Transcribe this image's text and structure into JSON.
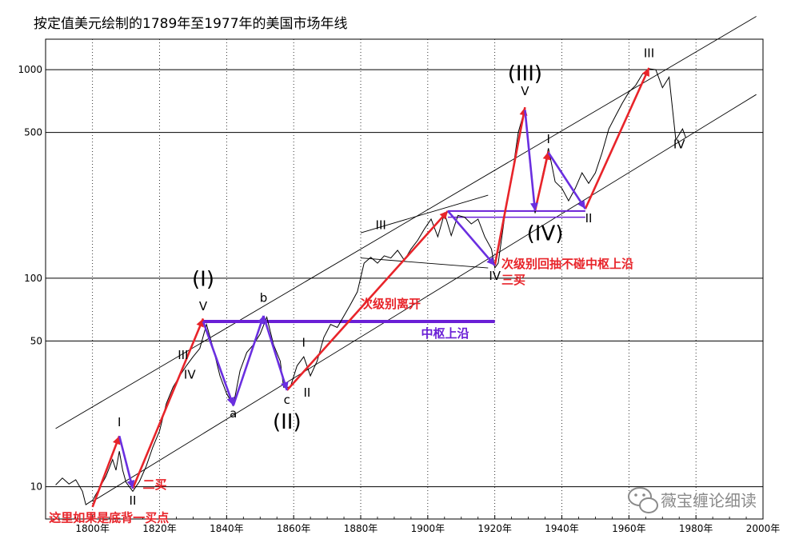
{
  "chart_data": {
    "type": "line",
    "title": "按定值美元绘制的1789年至1977年的美国市场年线",
    "y_scale": "log",
    "x_range": [
      1786,
      2000
    ],
    "y_range": [
      7,
      1400
    ],
    "x_ticks": [
      {
        "value": 1800,
        "label": "1800年"
      },
      {
        "value": 1820,
        "label": "1820年"
      },
      {
        "value": 1840,
        "label": "1840年"
      },
      {
        "value": 1860,
        "label": "1860年"
      },
      {
        "value": 1880,
        "label": "1880年"
      },
      {
        "value": 1900,
        "label": "1900年"
      },
      {
        "value": 1920,
        "label": "1920年"
      },
      {
        "value": 1940,
        "label": "1940年"
      },
      {
        "value": 1960,
        "label": "1960年"
      },
      {
        "value": 1980,
        "label": "1980年"
      },
      {
        "value": 2000,
        "label": "2000年"
      }
    ],
    "y_ticks": [
      {
        "value": 10,
        "label": "10"
      },
      {
        "value": 50,
        "label": "50"
      },
      {
        "value": 100,
        "label": "100"
      },
      {
        "value": 500,
        "label": "500"
      },
      {
        "value": 1000,
        "label": "1000"
      }
    ],
    "series": [
      {
        "color": "#000000",
        "points": [
          [
            1789,
            10.2
          ],
          [
            1791,
            11
          ],
          [
            1793,
            10.3
          ],
          [
            1795,
            10.8
          ],
          [
            1797,
            9.5
          ],
          [
            1798,
            8.2
          ],
          [
            1800,
            8.6
          ],
          [
            1802,
            9.8
          ],
          [
            1804,
            11.2
          ],
          [
            1806,
            13.5
          ],
          [
            1807,
            12.0
          ],
          [
            1808,
            14.8
          ],
          [
            1809,
            12.0
          ],
          [
            1810,
            10.5
          ],
          [
            1812,
            9.5
          ],
          [
            1814,
            10.6
          ],
          [
            1816,
            12.5
          ],
          [
            1818,
            15.5
          ],
          [
            1820,
            18.5
          ],
          [
            1822,
            25
          ],
          [
            1824,
            30
          ],
          [
            1826,
            34
          ],
          [
            1828,
            38
          ],
          [
            1830,
            42
          ],
          [
            1832,
            46
          ],
          [
            1834,
            60
          ],
          [
            1836,
            46
          ],
          [
            1838,
            34
          ],
          [
            1840,
            28
          ],
          [
            1842,
            24.5
          ],
          [
            1844,
            36
          ],
          [
            1846,
            44
          ],
          [
            1848,
            48
          ],
          [
            1850,
            54
          ],
          [
            1852,
            65
          ],
          [
            1854,
            48
          ],
          [
            1856,
            40
          ],
          [
            1857,
            30
          ],
          [
            1859,
            30
          ],
          [
            1861,
            38
          ],
          [
            1863,
            42
          ],
          [
            1865,
            34
          ],
          [
            1867,
            40
          ],
          [
            1869,
            52
          ],
          [
            1871,
            60
          ],
          [
            1873,
            58
          ],
          [
            1875,
            66
          ],
          [
            1877,
            75
          ],
          [
            1879,
            86
          ],
          [
            1881,
            118
          ],
          [
            1883,
            126
          ],
          [
            1885,
            118
          ],
          [
            1887,
            128
          ],
          [
            1889,
            125
          ],
          [
            1891,
            136
          ],
          [
            1893,
            122
          ],
          [
            1895,
            138
          ],
          [
            1897,
            152
          ],
          [
            1899,
            172
          ],
          [
            1901,
            192
          ],
          [
            1903,
            158
          ],
          [
            1905,
            205
          ],
          [
            1907,
            160
          ],
          [
            1909,
            200
          ],
          [
            1911,
            196
          ],
          [
            1913,
            182
          ],
          [
            1915,
            192
          ],
          [
            1917,
            158
          ],
          [
            1919,
            138
          ],
          [
            1920,
            112
          ],
          [
            1921,
            118
          ],
          [
            1923,
            200
          ],
          [
            1925,
            300
          ],
          [
            1927,
            500
          ],
          [
            1929,
            650
          ],
          [
            1930,
            420
          ],
          [
            1932,
            205
          ],
          [
            1934,
            300
          ],
          [
            1936,
            420
          ],
          [
            1938,
            290
          ],
          [
            1940,
            270
          ],
          [
            1942,
            235
          ],
          [
            1944,
            270
          ],
          [
            1946,
            320
          ],
          [
            1948,
            285
          ],
          [
            1950,
            320
          ],
          [
            1952,
            400
          ],
          [
            1954,
            520
          ],
          [
            1956,
            600
          ],
          [
            1958,
            690
          ],
          [
            1960,
            780
          ],
          [
            1962,
            840
          ],
          [
            1964,
            950
          ],
          [
            1966,
            1010
          ],
          [
            1968,
            1000
          ],
          [
            1970,
            820
          ],
          [
            1972,
            920
          ],
          [
            1974,
            460
          ],
          [
            1976,
            520
          ],
          [
            1977,
            470
          ]
        ]
      }
    ],
    "channel_lines": [
      {
        "from": [
          1789,
          19
        ],
        "to": [
          1998,
          1800
        ]
      },
      {
        "from": [
          1800,
          8.5
        ],
        "to": [
          1998,
          760
        ]
      },
      {
        "from": [
          1880,
          125
        ],
        "to": [
          1918,
          112
        ]
      },
      {
        "from": [
          1880,
          165
        ],
        "to": [
          1918,
          250
        ]
      }
    ],
    "overlays": {
      "red_arrows": [
        {
          "from": [
            1800,
            8.0
          ],
          "to": [
            1808,
            17.5
          ]
        },
        {
          "from": [
            1812,
            9.8
          ],
          "to": [
            1833,
            64
          ]
        },
        {
          "from": [
            1858,
            29
          ],
          "to": [
            1906,
            210
          ]
        },
        {
          "from": [
            1920,
            115
          ],
          "to": [
            1929,
            660
          ]
        },
        {
          "from": [
            1932,
            210
          ],
          "to": [
            1936,
            405
          ]
        },
        {
          "from": [
            1947,
            215
          ],
          "to": [
            1966,
            1020
          ]
        }
      ],
      "blue_arrows": [
        {
          "from": [
            1808,
            17.5
          ],
          "to": [
            1812,
            9.8
          ]
        },
        {
          "from": [
            1833,
            62
          ],
          "to": [
            1842,
            24.5
          ]
        },
        {
          "from": [
            1842,
            24.5
          ],
          "to": [
            1851,
            66
          ]
        },
        {
          "from": [
            1851,
            66
          ],
          "to": [
            1858,
            29
          ]
        },
        {
          "from": [
            1906,
            210
          ],
          "to": [
            1920,
            115
          ]
        },
        {
          "from": [
            1929,
            640
          ],
          "to": [
            1932,
            210
          ]
        },
        {
          "from": [
            1936,
            400
          ],
          "to": [
            1947,
            215
          ]
        }
      ],
      "blue_zone": {
        "y_top": 62,
        "x_from": 1833,
        "x_to": 1920
      },
      "blue_zone_2": {
        "y_top": 210,
        "y_bottom": 196,
        "x_from": 1906,
        "x_to": 1947
      }
    },
    "wave_labels": [
      {
        "text": "I",
        "x": 1808,
        "y": 19.5
      },
      {
        "text": "II",
        "x": 1812,
        "y": 8.2
      },
      {
        "text": "III",
        "x": 1827,
        "y": 41
      },
      {
        "text": "IV",
        "x": 1829,
        "y": 33
      },
      {
        "text": "V",
        "x": 1833,
        "y": 70
      },
      {
        "text": "a",
        "x": 1842,
        "y": 21.5
      },
      {
        "text": "b",
        "x": 1851,
        "y": 77
      },
      {
        "text": "c",
        "x": 1858,
        "y": 25
      },
      {
        "text": "I",
        "x": 1863,
        "y": 47
      },
      {
        "text": "II",
        "x": 1864,
        "y": 27
      },
      {
        "text": "III",
        "x": 1886,
        "y": 172
      },
      {
        "text": "IV",
        "x": 1920,
        "y": 98
      },
      {
        "text": "V",
        "x": 1929,
        "y": 755
      },
      {
        "text": "I",
        "x": 1936,
        "y": 445
      },
      {
        "text": "II",
        "x": 1948,
        "y": 185
      },
      {
        "text": "III",
        "x": 1966,
        "y": 1150
      },
      {
        "text": "IV",
        "x": 1975,
        "y": 420
      }
    ],
    "big_labels": [
      {
        "text": "(I)",
        "x": 1833,
        "y": 92
      },
      {
        "text": "(II)",
        "x": 1858,
        "y": 19
      },
      {
        "text": "(III)",
        "x": 1929,
        "y": 890
      },
      {
        "text": "(IV)",
        "x": 1935,
        "y": 152
      }
    ],
    "annotations": [
      {
        "text": "二买",
        "x": 1815,
        "y": 9.8,
        "color": "#e8242a"
      },
      {
        "text": "这里如果是底背一买点",
        "x": 1787,
        "y": 6.8,
        "color": "#e8242a"
      },
      {
        "text": "次级别离开",
        "x": 1880,
        "y": 72,
        "color": "#e8242a"
      },
      {
        "text": "中枢上沿",
        "x": 1898,
        "y": 52,
        "color": "#6a1fd6"
      },
      {
        "text": "次级别回抽不碰中枢上沿",
        "x": 1922,
        "y": 112,
        "color": "#e8242a"
      },
      {
        "text": "三买",
        "x": 1922,
        "y": 94,
        "color": "#e8242a"
      }
    ]
  },
  "watermark": {
    "icon": "wechat-icon",
    "text": "薇宝缠论细读"
  }
}
